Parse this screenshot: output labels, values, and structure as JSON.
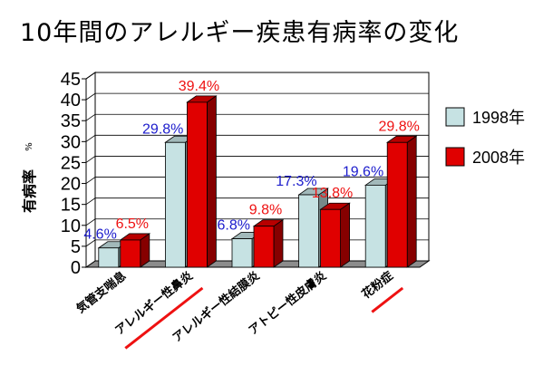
{
  "chart_data": {
    "type": "bar",
    "title": "10年間のアレルギー疾患有病率の変化",
    "ylabel": "有病率",
    "yunit": "%",
    "ylim": [
      0,
      45
    ],
    "yticks": [
      0,
      5,
      10,
      15,
      20,
      25,
      30,
      35,
      40,
      45
    ],
    "categories": [
      "気管支喘息",
      "アレルギー性鼻炎",
      "アレルギー性結膜炎",
      "アトピー性皮膚炎",
      "花粉症"
    ],
    "series": [
      {
        "name": "1998年",
        "values": [
          4.6,
          29.8,
          6.8,
          17.3,
          19.6
        ],
        "labels": [
          "4.6%",
          "29.8%",
          "6.8%",
          "17.3%",
          "19.6%"
        ],
        "color": "#c6e2e3"
      },
      {
        "name": "2008年",
        "values": [
          6.5,
          39.4,
          9.8,
          13.8,
          29.8
        ],
        "labels": [
          "6.5%",
          "39.4%",
          "9.8%",
          "13.8%",
          "29.8%"
        ],
        "color": "#e00000"
      }
    ],
    "label_colors": {
      "1998年": "#1c1ccc",
      "2008年": "#ee1111"
    },
    "underlined_categories": [
      "アレルギー性鼻炎",
      "花粉症"
    ],
    "underline_color": "#ee1111",
    "grid": true,
    "legend_position": "right"
  }
}
